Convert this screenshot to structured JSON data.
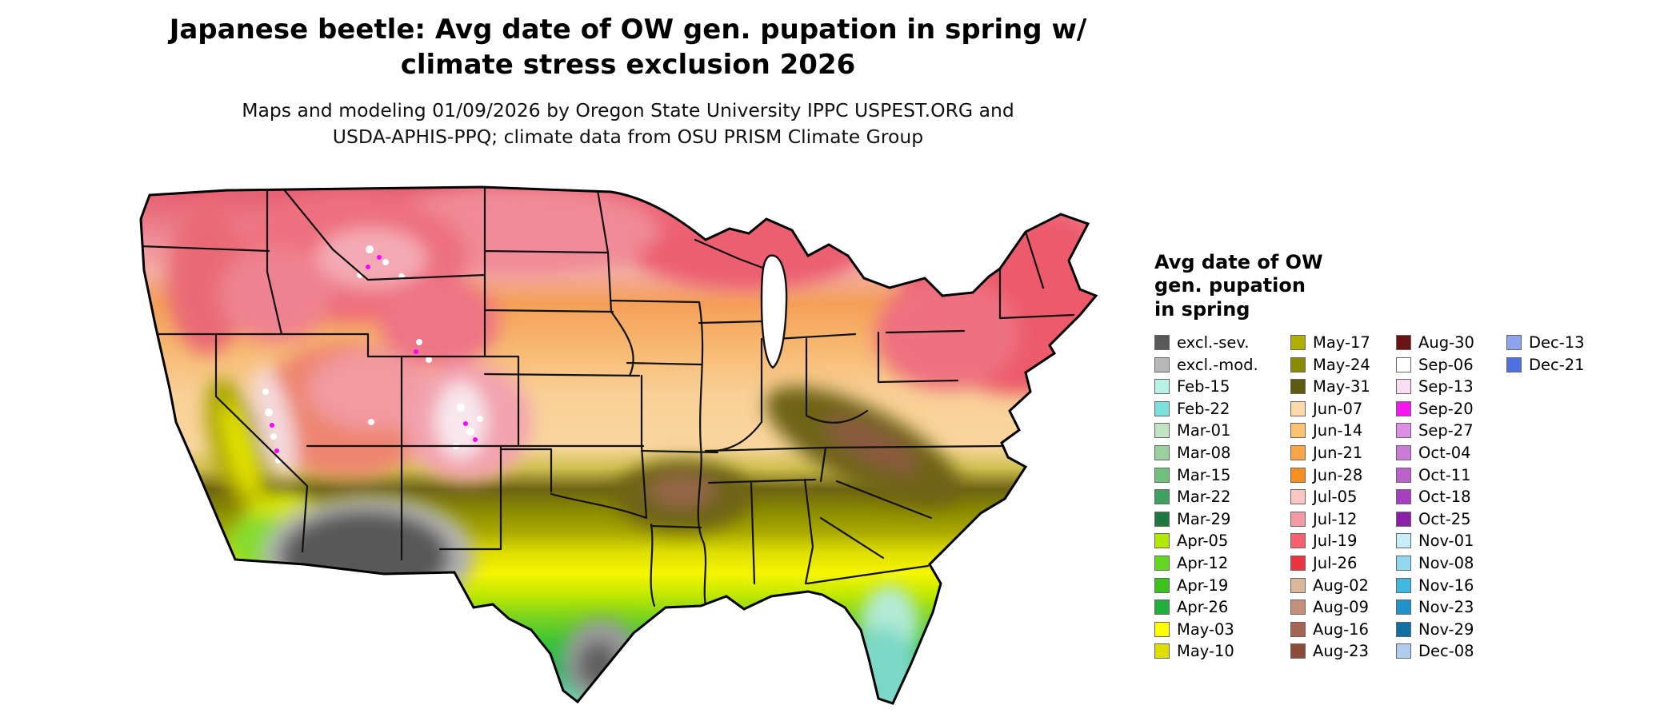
{
  "title": {
    "line1": "Japanese beetle: Avg date of OW gen. pupation in spring w/",
    "line2": "climate stress exclusion 2026"
  },
  "subtitle": {
    "line1": "Maps and modeling 01/09/2026 by Oregon State University IPPC USPEST.ORG and",
    "line2": "USDA-APHIS-PPQ; climate data from OSU PRISM Climate Group"
  },
  "map": {
    "region": "Continental United States"
  },
  "legend": {
    "title_lines": [
      "Avg date of OW",
      "gen. pupation",
      "in spring"
    ],
    "columns": [
      {
        "entries": [
          {
            "label": "excl.-sev.",
            "color": "#595959"
          },
          {
            "label": "excl.-mod.",
            "color": "#b8b8b8"
          },
          {
            "label": "Feb-15",
            "color": "#b8f2e4"
          },
          {
            "label": "Feb-22",
            "color": "#7ce0dc"
          },
          {
            "label": "Mar-01",
            "color": "#c0e4c4"
          },
          {
            "label": "Mar-08",
            "color": "#98d09e"
          },
          {
            "label": "Mar-15",
            "color": "#70c080"
          },
          {
            "label": "Mar-22",
            "color": "#40a060"
          },
          {
            "label": "Mar-29",
            "color": "#1c7840"
          },
          {
            "label": "Apr-05",
            "color": "#b4e800"
          },
          {
            "label": "Apr-12",
            "color": "#64d820"
          },
          {
            "label": "Apr-19",
            "color": "#3cc41e"
          },
          {
            "label": "Apr-26",
            "color": "#20b040"
          },
          {
            "label": "May-03",
            "color": "#ffff00"
          },
          {
            "label": "May-10",
            "color": "#dede00"
          }
        ]
      },
      {
        "entries": [
          {
            "label": "May-17",
            "color": "#b0b000"
          },
          {
            "label": "May-24",
            "color": "#8a8a00"
          },
          {
            "label": "May-31",
            "color": "#5e5a10"
          },
          {
            "label": "Jun-07",
            "color": "#fbd9a6"
          },
          {
            "label": "Jun-14",
            "color": "#fcc270"
          },
          {
            "label": "Jun-21",
            "color": "#fba544"
          },
          {
            "label": "Jun-28",
            "color": "#f89020"
          },
          {
            "label": "Jul-05",
            "color": "#f9c6c2"
          },
          {
            "label": "Jul-12",
            "color": "#f59aa4"
          },
          {
            "label": "Jul-19",
            "color": "#f4606e"
          },
          {
            "label": "Jul-26",
            "color": "#ee3340"
          },
          {
            "label": "Aug-02",
            "color": "#dcb89a"
          },
          {
            "label": "Aug-09",
            "color": "#c88e7c"
          },
          {
            "label": "Aug-16",
            "color": "#a66452"
          },
          {
            "label": "Aug-23",
            "color": "#8c4a38"
          }
        ]
      },
      {
        "entries": [
          {
            "label": "Aug-30",
            "color": "#6a1414"
          },
          {
            "label": "Sep-06",
            "color": "#fefefe"
          },
          {
            "label": "Sep-13",
            "color": "#fadef4"
          },
          {
            "label": "Sep-20",
            "color": "#f816f0"
          },
          {
            "label": "Sep-27",
            "color": "#de8ee4"
          },
          {
            "label": "Oct-04",
            "color": "#cc7ad8"
          },
          {
            "label": "Oct-11",
            "color": "#bc60cc"
          },
          {
            "label": "Oct-18",
            "color": "#a83ec0"
          },
          {
            "label": "Oct-25",
            "color": "#8c1ea8"
          },
          {
            "label": "Nov-01",
            "color": "#c8eefa"
          },
          {
            "label": "Nov-08",
            "color": "#92d8f0"
          },
          {
            "label": "Nov-16",
            "color": "#40b8e0"
          },
          {
            "label": "Nov-23",
            "color": "#2092cc"
          },
          {
            "label": "Nov-29",
            "color": "#1070a4"
          },
          {
            "label": "Dec-08",
            "color": "#b0cdf0"
          }
        ]
      },
      {
        "entries": [
          {
            "label": "Dec-13",
            "color": "#8ea2ee"
          },
          {
            "label": "Dec-21",
            "color": "#4f6ee0"
          }
        ]
      }
    ]
  }
}
